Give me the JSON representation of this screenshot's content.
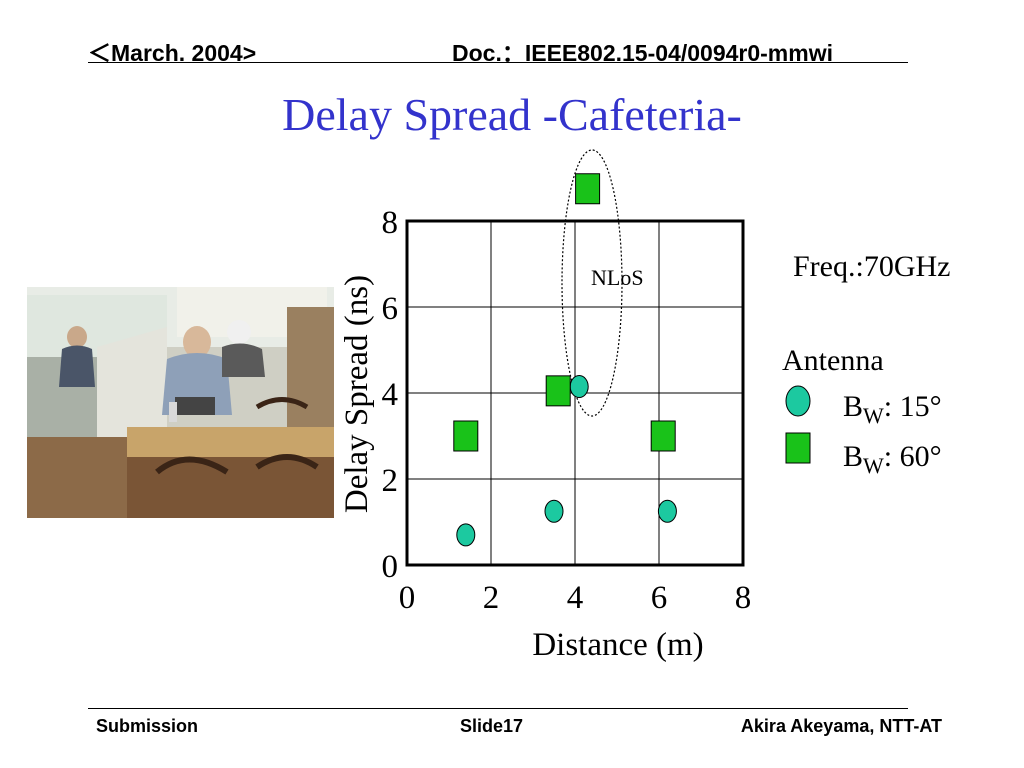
{
  "header": {
    "date": "＜March. 2004>",
    "doc": "Doc.：IEEE802.15-04/0094r0-mmwi"
  },
  "slide_title": "Delay Spread -Cafeteria-",
  "footer": {
    "left": "Submission",
    "center": "Slide17",
    "right": "Akira Akeyama, NTT-AT"
  },
  "side": {
    "freq": "Freq.:70GHz",
    "antenna_title": "Antenna",
    "legend": [
      {
        "b": "B",
        "sub": "W",
        "value": ": 15°",
        "shape": "circle",
        "color": "#1cc9a0"
      },
      {
        "b": "B",
        "sub": "W",
        "value": ": 60°",
        "shape": "square",
        "color": "#19c219"
      }
    ]
  },
  "photo": {
    "icon": "cafeteria-photo"
  },
  "chart_data": {
    "type": "scatter",
    "xlabel": "Distance (m)",
    "ylabel": "Delay Spread (ns)",
    "xlim": [
      0,
      8
    ],
    "ylim": [
      0,
      8
    ],
    "xticks": [
      "0",
      "2",
      "4",
      "6",
      "8"
    ],
    "yticks": [
      "0",
      "2",
      "4",
      "6",
      "8"
    ],
    "grid": true,
    "annotation": "NLoS",
    "series": [
      {
        "marker": "circle",
        "color": "#1cc9a0",
        "points": [
          [
            1.4,
            0.7
          ],
          [
            3.5,
            1.25
          ],
          [
            4.1,
            4.15
          ],
          [
            6.2,
            1.25
          ]
        ]
      },
      {
        "marker": "square",
        "color": "#19c219",
        "points": [
          [
            1.4,
            3.0
          ],
          [
            3.6,
            4.05
          ],
          [
            4.3,
            8.75
          ],
          [
            6.1,
            3.0
          ]
        ]
      }
    ]
  }
}
